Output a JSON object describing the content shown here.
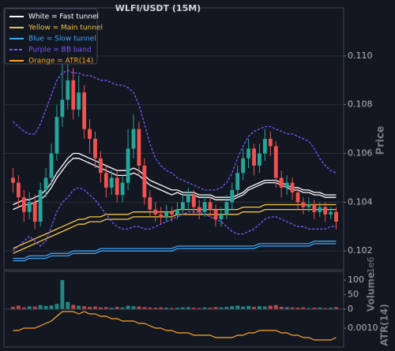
{
  "chart_data": {
    "type": "candlestick",
    "title": "WLFI/USDT (15M)",
    "ylabel": "Price",
    "up_color": "#26a69a",
    "down_color": "#ef5350",
    "ylim": [
      0.10123,
      0.11197
    ],
    "yticks": [
      0.102,
      0.104,
      0.106,
      0.108,
      {
        "value": 0.11,
        "label": "0.110"
      }
    ],
    "grid": true,
    "legend": "upper left",
    "open": [
      0.105,
      0.1048,
      0.1042,
      0.1036,
      0.104,
      0.1032,
      0.1045,
      0.105,
      0.106,
      0.1075,
      0.1082,
      0.109,
      0.1078,
      0.1085,
      0.107,
      0.1066,
      0.1058,
      0.1052,
      0.1046,
      0.105,
      0.1043,
      0.1048,
      0.1062,
      0.107,
      0.1055,
      0.1042,
      0.1037,
      0.1035,
      0.1034,
      0.1036,
      0.1035,
      0.1037,
      0.104,
      0.1043,
      0.1038,
      0.1036,
      0.104,
      0.1037,
      0.1033,
      0.1035,
      0.104,
      0.1045,
      0.1052,
      0.1058,
      0.1062,
      0.1055,
      0.106,
      0.1066,
      0.1063,
      0.105,
      0.1046,
      0.1048,
      0.1044,
      0.104,
      0.1038,
      0.1039,
      0.1036,
      0.1038,
      0.1035,
      0.1036
    ],
    "high": [
      0.1054,
      0.1051,
      0.1045,
      0.1044,
      0.1043,
      0.1048,
      0.1054,
      0.1064,
      0.108,
      0.1098,
      0.1105,
      0.1095,
      0.1092,
      0.1088,
      0.1074,
      0.1069,
      0.1061,
      0.1055,
      0.1053,
      0.1053,
      0.1051,
      0.107,
      0.1076,
      0.1073,
      0.1058,
      0.1045,
      0.104,
      0.1038,
      0.1039,
      0.1038,
      0.104,
      0.1043,
      0.1046,
      0.1045,
      0.1041,
      0.1043,
      0.1042,
      0.1039,
      0.1038,
      0.1043,
      0.1048,
      0.1055,
      0.1062,
      0.1066,
      0.1064,
      0.1064,
      0.107,
      0.1069,
      0.1065,
      0.1053,
      0.1051,
      0.105,
      0.1046,
      0.1042,
      0.1042,
      0.1041,
      0.104,
      0.104,
      0.1038,
      0.1038
    ],
    "low": [
      0.1044,
      0.1038,
      0.1032,
      0.1033,
      0.1029,
      0.103,
      0.1042,
      0.1047,
      0.1057,
      0.1071,
      0.1078,
      0.1074,
      0.1075,
      0.1066,
      0.106,
      0.1054,
      0.1048,
      0.1042,
      0.1043,
      0.104,
      0.104,
      0.1045,
      0.1058,
      0.1051,
      0.1039,
      0.1034,
      0.1032,
      0.1031,
      0.1032,
      0.1032,
      0.1033,
      0.1035,
      0.1037,
      0.1035,
      0.1033,
      0.1034,
      0.1034,
      0.103,
      0.103,
      0.1033,
      0.1037,
      0.1042,
      0.1049,
      0.1054,
      0.1051,
      0.1052,
      0.1057,
      0.1059,
      0.1046,
      0.1042,
      0.1043,
      0.1041,
      0.1037,
      0.1035,
      0.1036,
      0.1033,
      0.1034,
      0.1032,
      0.1033,
      0.1029
    ],
    "close": [
      0.1048,
      0.1042,
      0.1036,
      0.104,
      0.1032,
      0.1045,
      0.105,
      0.106,
      0.1075,
      0.1082,
      0.109,
      0.1078,
      0.1085,
      0.107,
      0.1066,
      0.1058,
      0.1052,
      0.1046,
      0.105,
      0.1043,
      0.1048,
      0.1062,
      0.107,
      0.1055,
      0.1042,
      0.1037,
      0.1035,
      0.1034,
      0.1036,
      0.1035,
      0.1037,
      0.104,
      0.1043,
      0.1038,
      0.1036,
      0.104,
      0.1037,
      0.1033,
      0.1035,
      0.104,
      0.1045,
      0.1052,
      0.1058,
      0.1062,
      0.1055,
      0.106,
      0.1066,
      0.1063,
      0.105,
      0.1046,
      0.1048,
      0.1044,
      0.104,
      0.1038,
      0.1039,
      0.1036,
      0.1038,
      0.1035,
      0.1036,
      0.1032
    ],
    "series": [
      {
        "name": "White = Fast tunnel",
        "color": "#ffffff",
        "upper": [
          0.1039,
          0.104,
          0.1041,
          0.1041,
          0.1042,
          0.1043,
          0.1045,
          0.1048,
          0.1052,
          0.1055,
          0.1058,
          0.106,
          0.106,
          0.1059,
          0.1058,
          0.1057,
          0.1056,
          0.1055,
          0.1054,
          0.1053,
          0.1053,
          0.1053,
          0.1054,
          0.1053,
          0.1051,
          0.1049,
          0.1048,
          0.1047,
          0.1046,
          0.1045,
          0.1045,
          0.1044,
          0.1044,
          0.1044,
          0.1043,
          0.1043,
          0.1043,
          0.1042,
          0.1042,
          0.1042,
          0.1042,
          0.1043,
          0.1044,
          0.1046,
          0.1047,
          0.1048,
          0.1049,
          0.1049,
          0.1049,
          0.1048,
          0.1047,
          0.1046,
          0.1046,
          0.1045,
          0.1045,
          0.1044,
          0.1044,
          0.1043,
          0.1043,
          0.1043
        ],
        "lower": [
          0.1037,
          0.1038,
          0.1039,
          0.1039,
          0.104,
          0.1041,
          0.1043,
          0.1046,
          0.105,
          0.1053,
          0.1056,
          0.1058,
          0.1058,
          0.1057,
          0.1056,
          0.1055,
          0.1054,
          0.1053,
          0.1052,
          0.1051,
          0.1051,
          0.1051,
          0.1052,
          0.1051,
          0.1049,
          0.1047,
          0.1046,
          0.1045,
          0.1044,
          0.1043,
          0.1044,
          0.1043,
          0.1043,
          0.1043,
          0.1042,
          0.1042,
          0.1042,
          0.1041,
          0.1041,
          0.1041,
          0.1041,
          0.1042,
          0.1043,
          0.1045,
          0.1046,
          0.1047,
          0.1048,
          0.1048,
          0.1048,
          0.1047,
          0.1046,
          0.1045,
          0.1045,
          0.1044,
          0.1044,
          0.1043,
          0.1043,
          0.1042,
          0.1042,
          0.1042
        ]
      },
      {
        "name": "Yellow = Main tunnel",
        "color": "#f5c542",
        "upper": [
          0.1021,
          0.1022,
          0.1023,
          0.1024,
          0.1025,
          0.1026,
          0.1027,
          0.1028,
          0.1029,
          0.103,
          0.1031,
          0.1032,
          0.1033,
          0.1033,
          0.1034,
          0.1034,
          0.1034,
          0.1035,
          0.1035,
          0.1035,
          0.1035,
          0.1035,
          0.1036,
          0.1036,
          0.1036,
          0.1036,
          0.1036,
          0.1036,
          0.1036,
          0.1036,
          0.1037,
          0.1037,
          0.1037,
          0.1037,
          0.1037,
          0.1037,
          0.1037,
          0.1037,
          0.1037,
          0.1037,
          0.1037,
          0.1037,
          0.1038,
          0.1038,
          0.1038,
          0.1038,
          0.1039,
          0.1039,
          0.1039,
          0.1039,
          0.1039,
          0.1039,
          0.1039,
          0.1039,
          0.1039,
          0.1039,
          0.1039,
          0.1039,
          0.1039,
          0.1039
        ],
        "lower": [
          0.1019,
          0.102,
          0.1021,
          0.1022,
          0.1023,
          0.1024,
          0.1025,
          0.1026,
          0.1027,
          0.1028,
          0.1029,
          0.103,
          0.1031,
          0.1031,
          0.1032,
          0.1032,
          0.1032,
          0.1033,
          0.1033,
          0.1033,
          0.1033,
          0.1033,
          0.1034,
          0.1034,
          0.1034,
          0.1034,
          0.1034,
          0.1034,
          0.1034,
          0.1034,
          0.1035,
          0.1035,
          0.1035,
          0.1035,
          0.1035,
          0.1035,
          0.1035,
          0.1035,
          0.1035,
          0.1035,
          0.1035,
          0.1035,
          0.1036,
          0.1036,
          0.1036,
          0.1036,
          0.1037,
          0.1037,
          0.1037,
          0.1037,
          0.1037,
          0.1037,
          0.1037,
          0.1037,
          0.1037,
          0.1037,
          0.1037,
          0.1037,
          0.1037,
          0.1037
        ]
      },
      {
        "name": "Blue = Slow tunnel",
        "color": "#42a5f5",
        "upper": [
          0.1017,
          0.1017,
          0.1017,
          0.1018,
          0.1018,
          0.1018,
          0.1018,
          0.1019,
          0.1019,
          0.1019,
          0.1019,
          0.102,
          0.102,
          0.102,
          0.102,
          0.102,
          0.1021,
          0.1021,
          0.1021,
          0.1021,
          0.1021,
          0.1021,
          0.1021,
          0.1021,
          0.1021,
          0.1021,
          0.1021,
          0.1021,
          0.1021,
          0.1021,
          0.1022,
          0.1022,
          0.1022,
          0.1022,
          0.1022,
          0.1022,
          0.1022,
          0.1022,
          0.1022,
          0.1022,
          0.1022,
          0.1022,
          0.1022,
          0.1022,
          0.1022,
          0.1023,
          0.1023,
          0.1023,
          0.1023,
          0.1023,
          0.1023,
          0.1023,
          0.1023,
          0.1023,
          0.1023,
          0.1024,
          0.1024,
          0.1024,
          0.1024,
          0.1024
        ],
        "lower": [
          0.1016,
          0.1016,
          0.1016,
          0.1017,
          0.1017,
          0.1017,
          0.1017,
          0.1018,
          0.1018,
          0.1018,
          0.1018,
          0.1019,
          0.1019,
          0.1019,
          0.1019,
          0.1019,
          0.102,
          0.102,
          0.102,
          0.102,
          0.102,
          0.102,
          0.102,
          0.102,
          0.102,
          0.102,
          0.102,
          0.102,
          0.102,
          0.102,
          0.1021,
          0.1021,
          0.1021,
          0.1021,
          0.1021,
          0.1021,
          0.1021,
          0.1021,
          0.1021,
          0.1021,
          0.1021,
          0.1021,
          0.1021,
          0.1021,
          0.1021,
          0.1022,
          0.1022,
          0.1022,
          0.1022,
          0.1022,
          0.1022,
          0.1022,
          0.1022,
          0.1022,
          0.1022,
          0.1023,
          0.1023,
          0.1023,
          0.1023,
          0.1023
        ]
      },
      {
        "name": "Purple = BB band",
        "color": "#7e57ff",
        "dashed": true,
        "upper": [
          0.1073,
          0.1071,
          0.1069,
          0.1068,
          0.1068,
          0.1072,
          0.1078,
          0.1084,
          0.109,
          0.1093,
          0.1094,
          0.1093,
          0.1093,
          0.1092,
          0.1092,
          0.1091,
          0.109,
          0.109,
          0.1089,
          0.1088,
          0.1088,
          0.1087,
          0.1085,
          0.108,
          0.1072,
          0.1064,
          0.1058,
          0.1055,
          0.1053,
          0.1052,
          0.105,
          0.1049,
          0.1048,
          0.1047,
          0.1046,
          0.1045,
          0.1045,
          0.1045,
          0.1046,
          0.1048,
          0.1052,
          0.1058,
          0.1063,
          0.1067,
          0.1069,
          0.107,
          0.1071,
          0.1071,
          0.107,
          0.1069,
          0.1068,
          0.1068,
          0.1067,
          0.1066,
          0.1065,
          0.1062,
          0.1058,
          0.1055,
          0.1053,
          0.1052
        ],
        "lower": [
          0.102,
          0.1022,
          0.1024,
          0.1026,
          0.1024,
          0.1022,
          0.1024,
          0.103,
          0.1036,
          0.104,
          0.1042,
          0.1045,
          0.1046,
          0.1045,
          0.1043,
          0.1041,
          0.1038,
          0.1035,
          0.1032,
          0.103,
          0.1029,
          0.1029,
          0.103,
          0.103,
          0.1029,
          0.1029,
          0.103,
          0.1031,
          0.1032,
          0.1033,
          0.1034,
          0.1035,
          0.1036,
          0.1036,
          0.1036,
          0.1035,
          0.1034,
          0.1033,
          0.1032,
          0.103,
          0.1028,
          0.1027,
          0.1027,
          0.1028,
          0.1029,
          0.1031,
          0.1033,
          0.1034,
          0.1034,
          0.1033,
          0.1032,
          0.1031,
          0.103,
          0.103,
          0.1029,
          0.1029,
          0.1029,
          0.1029,
          0.103,
          0.103
        ]
      },
      {
        "name": "Orange = ATR(14)",
        "color": "#ffa726",
        "panel": "atr",
        "values": [
          0.0009,
          0.0009,
          0.001,
          0.001,
          0.001,
          0.0011,
          0.0012,
          0.0013,
          0.0015,
          0.0017,
          0.0017,
          0.0017,
          0.0016,
          0.0017,
          0.0016,
          0.0016,
          0.0015,
          0.0015,
          0.0014,
          0.0014,
          0.0013,
          0.0013,
          0.0013,
          0.0012,
          0.0012,
          0.0011,
          0.001,
          0.001,
          0.0009,
          0.0009,
          0.0008,
          0.0008,
          0.0008,
          0.0007,
          0.0007,
          0.0007,
          0.0007,
          0.0006,
          0.0006,
          0.0006,
          0.0006,
          0.0007,
          0.0007,
          0.0008,
          0.0008,
          0.0009,
          0.0009,
          0.0009,
          0.0009,
          0.0008,
          0.0008,
          0.0007,
          0.0007,
          0.0006,
          0.0006,
          0.0005,
          0.0005,
          0.0005,
          0.0005,
          0.0006
        ]
      }
    ],
    "volume": [
      8,
      12,
      6,
      10,
      9,
      14,
      11,
      13,
      18,
      100,
      25,
      15,
      12,
      10,
      8,
      9,
      6,
      7,
      5,
      8,
      6,
      12,
      10,
      9,
      7,
      6,
      5,
      6,
      5,
      4,
      5,
      6,
      7,
      5,
      4,
      6,
      5,
      7,
      6,
      8,
      10,
      12,
      9,
      11,
      8,
      10,
      9,
      12,
      14,
      8,
      7,
      6,
      5,
      6,
      4,
      5,
      6,
      4,
      5,
      7
    ],
    "volume_label": "Volume",
    "volume_offset": "1e6",
    "volume_ylim": [
      0,
      130
    ],
    "volume_yticks": [
      0,
      50,
      100
    ],
    "atr_label": "ATR(14)",
    "atr_ylim": [
      0.0002,
      0.0018
    ],
    "atr_yticks": [
      {
        "value": 0.001,
        "label": "0.0010"
      }
    ]
  }
}
